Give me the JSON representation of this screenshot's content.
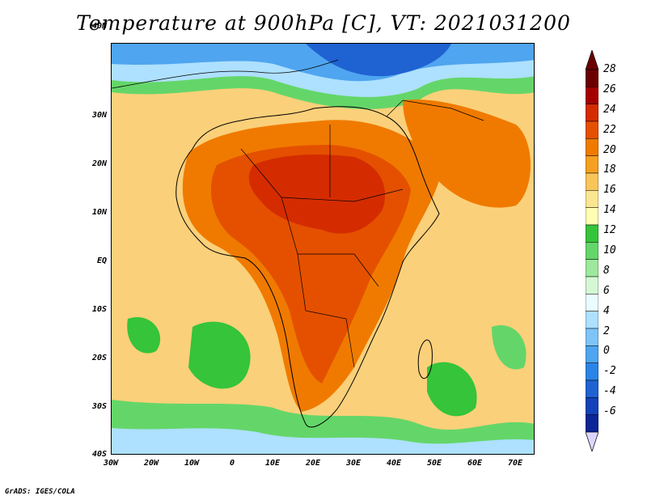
{
  "title": "Temperature at 900hPa [C], VT: 2021031200",
  "credit": "GrADS: IGES/COLA",
  "map": {
    "projection": "lat-lon",
    "lon_labels": [
      "30W",
      "20W",
      "10W",
      "0",
      "10E",
      "20E",
      "30E",
      "40E",
      "50E",
      "60E",
      "70E"
    ],
    "lat_labels": [
      "40N",
      "30N",
      "20N",
      "10N",
      "EQ",
      "10S",
      "20S",
      "30S",
      "40S"
    ],
    "lon_range": [
      -30,
      75
    ],
    "lat_range": [
      -40,
      45
    ]
  },
  "colorbar": {
    "labels": [
      "28",
      "26",
      "24",
      "22",
      "20",
      "18",
      "16",
      "14",
      "12",
      "10",
      "8",
      "6",
      "4",
      "2",
      "0",
      "-2",
      "-4",
      "-6"
    ],
    "colors": [
      "#d3f0ff",
      "#6b0000",
      "#a50000",
      "#d42c00",
      "#e45000",
      "#f07a00",
      "#f5a020",
      "#f8c55a",
      "#fbe691",
      "#ffffb4",
      "#35c43a",
      "#64d669",
      "#9de89d",
      "#d4f7d4",
      "#e9fcff",
      "#aee0ff",
      "#7fc4f7",
      "#4fa5ef",
      "#2b85e6",
      "#1f62d2",
      "#1341b9",
      "#0c2597",
      "#ddd6ff"
    ]
  }
}
